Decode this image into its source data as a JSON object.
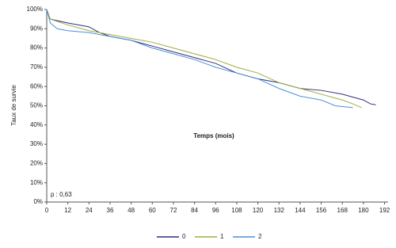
{
  "chart_data": {
    "type": "line",
    "x_label": "Temps (mois)",
    "y_label": "Taux de survie",
    "annotation": "p : 0,63",
    "xlim": [
      0,
      194
    ],
    "xticks": [
      0,
      12,
      24,
      36,
      48,
      60,
      72,
      84,
      96,
      108,
      120,
      132,
      144,
      156,
      168,
      180,
      192
    ],
    "ylim": [
      0,
      100
    ],
    "yticks": [
      {
        "value": 0,
        "label": "0%"
      },
      {
        "value": 10,
        "label": "10%"
      },
      {
        "value": 20,
        "label": "20%"
      },
      {
        "value": 30,
        "label": "30%"
      },
      {
        "value": 40,
        "label": "40%"
      },
      {
        "value": 50,
        "label": "50%"
      },
      {
        "value": 60,
        "label": "60%"
      },
      {
        "value": 70,
        "label": "70%"
      },
      {
        "value": 80,
        "label": "80%"
      },
      {
        "value": 90,
        "label": "90%"
      },
      {
        "value": 100,
        "label": "100%"
      }
    ],
    "legend": "bottom",
    "series": [
      {
        "name": "0",
        "color": "#2e2e80",
        "x": [
          0,
          2,
          12,
          24,
          30,
          36,
          48,
          60,
          72,
          84,
          96,
          108,
          120,
          132,
          144,
          156,
          168,
          180,
          184,
          187
        ],
        "values": [
          100,
          95,
          93,
          91,
          88,
          86,
          84,
          81,
          78,
          75,
          72,
          67,
          64,
          62,
          59,
          58,
          56,
          53,
          51,
          50.5
        ]
      },
      {
        "name": "1",
        "color": "#9aae3c",
        "x": [
          0,
          2,
          12,
          24,
          36,
          48,
          60,
          72,
          84,
          96,
          108,
          120,
          132,
          144,
          156,
          168,
          174,
          179
        ],
        "values": [
          100,
          95,
          92,
          89,
          87,
          85,
          83,
          80,
          77,
          74,
          70,
          67,
          62,
          59,
          56,
          53,
          51,
          49
        ]
      },
      {
        "name": "2",
        "color": "#4a90d9",
        "x": [
          0,
          2,
          6,
          12,
          24,
          36,
          48,
          60,
          72,
          84,
          96,
          108,
          120,
          132,
          144,
          156,
          164,
          174
        ],
        "values": [
          100,
          93,
          90,
          89,
          88,
          86,
          84,
          80,
          77,
          74,
          70,
          67,
          64,
          59,
          55,
          53,
          50,
          49
        ]
      }
    ]
  }
}
